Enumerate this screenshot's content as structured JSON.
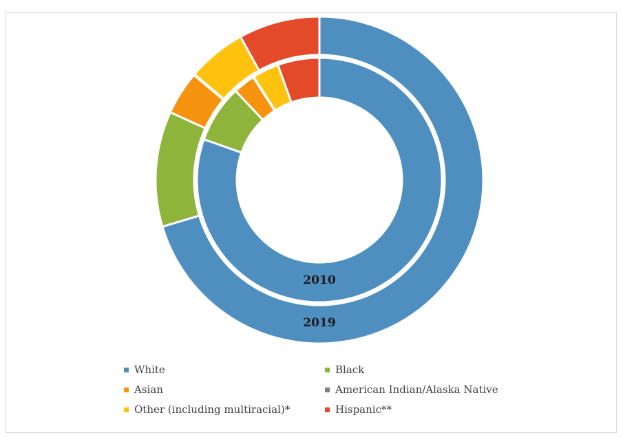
{
  "chart_data": {
    "type": "donut",
    "categories": [
      "White",
      "Black",
      "Asian",
      "American Indian/Alaska Native",
      "Other (including multiracial)*",
      "Hispanic**"
    ],
    "colors": [
      "#4f8fc0",
      "#8fb43c",
      "#f5930f",
      "#7f7f7f",
      "#ffc20e",
      "#e24a2a"
    ],
    "series": [
      {
        "name": "2010",
        "values": [
          80.4,
          7.6,
          2.9,
          0.1,
          3.5,
          5.5
        ]
      },
      {
        "name": "2019",
        "values": [
          70.4,
          11.4,
          4.3,
          0.1,
          5.8,
          8.0
        ]
      }
    ],
    "legend_position": "bottom"
  },
  "labels": {
    "inner": "2010",
    "outer": "2019"
  }
}
